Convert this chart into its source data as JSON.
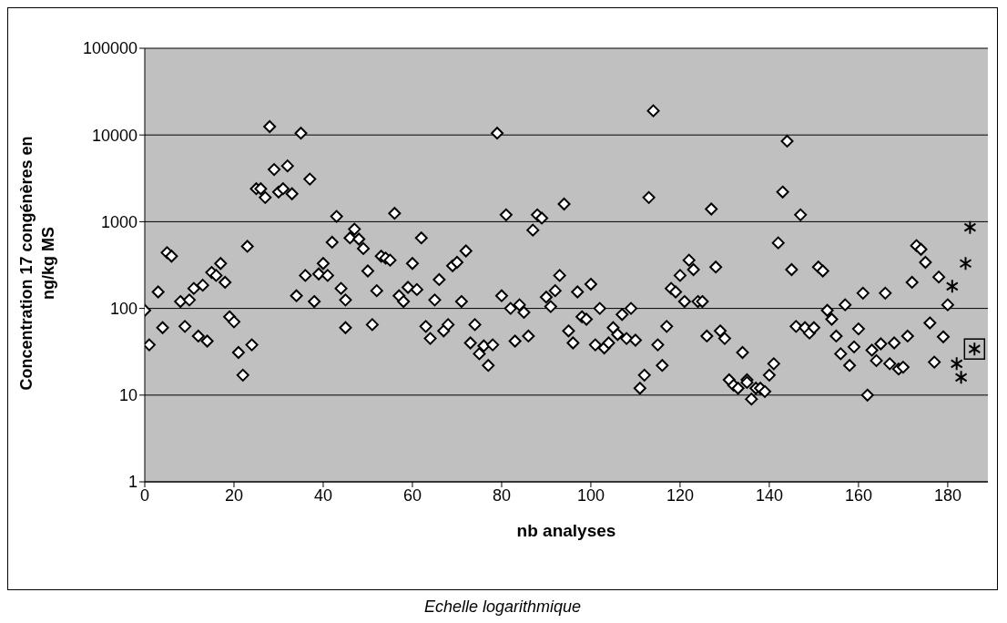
{
  "chart_data": {
    "type": "scatter",
    "xlabel": "nb analyses",
    "ylabel": "Concentration 17 congénères en ng/kg MS",
    "annotations": [
      "Echelle logarithmique"
    ],
    "log": "y",
    "grid": "y",
    "xlim": [
      0,
      189
    ],
    "xticks": [
      0,
      20,
      40,
      60,
      80,
      100,
      120,
      140,
      160,
      180
    ],
    "ylim": [
      1,
      100000
    ],
    "yticks": [
      1,
      10,
      100,
      1000,
      10000,
      100000
    ],
    "series": [
      {
        "color": "#000000",
        "marker": "diamond",
        "x": [
          0,
          1,
          3,
          4,
          5,
          6,
          8,
          9,
          10,
          11,
          12,
          13,
          14,
          15,
          16,
          17,
          18,
          19,
          20,
          21,
          22,
          23,
          24,
          25,
          26,
          27,
          28,
          29,
          30,
          31,
          32,
          33,
          34,
          35,
          36,
          37,
          38,
          39,
          40,
          41,
          42,
          43,
          44,
          45,
          45,
          46,
          47,
          48,
          49,
          50,
          51,
          52,
          53,
          54,
          55,
          56,
          57,
          58,
          59,
          60,
          61,
          62,
          63,
          64,
          65,
          66,
          67,
          68,
          69,
          70,
          71,
          72,
          73,
          74,
          75,
          76,
          77,
          78,
          79,
          80,
          81,
          82,
          83,
          84,
          85,
          86,
          87,
          88,
          89,
          90,
          91,
          92,
          93,
          94,
          95,
          96,
          97,
          98,
          99,
          100,
          101,
          102,
          103,
          104,
          105,
          106,
          107,
          108,
          109,
          110,
          111,
          112,
          113,
          114,
          115,
          116,
          117,
          118,
          119,
          120,
          121,
          122,
          123,
          124,
          125,
          126,
          127,
          128,
          129,
          130,
          131,
          132,
          133,
          134,
          135,
          135,
          136,
          137,
          138,
          139,
          140,
          141,
          142,
          143,
          144,
          145,
          146,
          147,
          148,
          149,
          150,
          151,
          152,
          153,
          154,
          155,
          156,
          157,
          158,
          159,
          160,
          161,
          162,
          163,
          164,
          165,
          166,
          167,
          168,
          169,
          170,
          171,
          172,
          173,
          174,
          175,
          176,
          177,
          178,
          179,
          180
        ],
        "values": [
          95,
          38,
          155,
          60,
          440,
          400,
          120,
          62,
          125,
          170,
          48,
          185,
          42,
          260,
          240,
          330,
          200,
          80,
          70,
          31,
          17,
          520,
          38,
          2400,
          2400,
          1900,
          12500,
          4000,
          2200,
          2400,
          4400,
          2100,
          140,
          10500,
          240,
          3100,
          120,
          250,
          330,
          240,
          580,
          1150,
          170,
          60,
          125,
          650,
          820,
          630,
          490,
          270,
          65,
          160,
          400,
          380,
          360,
          1250,
          140,
          120,
          175,
          330,
          165,
          650,
          62,
          45,
          125,
          215,
          55,
          65,
          310,
          340,
          120,
          460,
          40,
          65,
          30,
          37,
          22,
          38,
          10500,
          140,
          1200,
          100,
          42,
          110,
          90,
          48,
          800,
          1200,
          1100,
          135,
          105,
          160,
          240,
          1600,
          55,
          40,
          155,
          80,
          75,
          190,
          38,
          100,
          35,
          40,
          60,
          50,
          85,
          45,
          100,
          43,
          12,
          17,
          1900,
          19000,
          38,
          22,
          62,
          170,
          155,
          240,
          120,
          360,
          280,
          120,
          120,
          48,
          1400,
          300,
          55,
          45,
          15,
          13,
          12,
          31,
          15,
          14,
          9,
          12,
          12,
          11,
          17,
          23,
          570,
          2200,
          8500,
          280,
          62,
          1200,
          60,
          52,
          60,
          300,
          270,
          95,
          75,
          48,
          30,
          110,
          22,
          36,
          58,
          150,
          10,
          33,
          25,
          39,
          150,
          23,
          40,
          20,
          21,
          48,
          200,
          530,
          480,
          340,
          68,
          24,
          230,
          47,
          110
        ]
      },
      {
        "color": "#000000",
        "marker": "cross",
        "x": [
          181,
          182,
          183,
          184,
          185,
          186
        ],
        "values": [
          180,
          23,
          16,
          330,
          860,
          34
        ]
      }
    ]
  }
}
